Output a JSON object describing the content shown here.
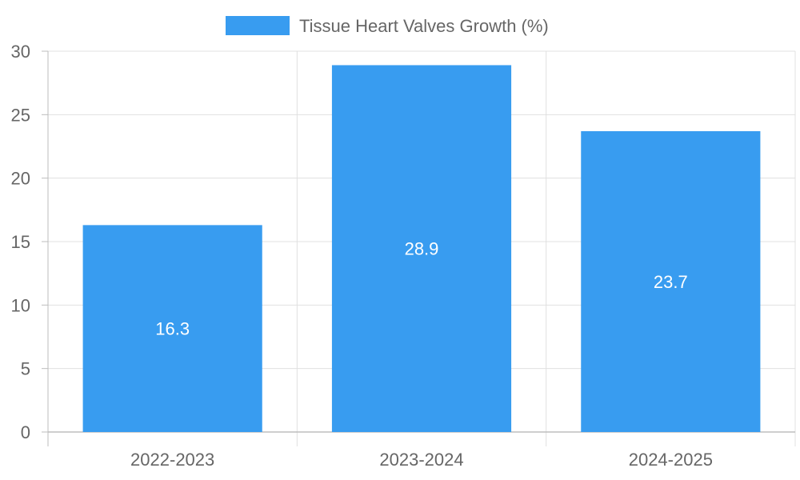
{
  "chart_data": {
    "type": "bar",
    "categories": [
      "2022-2023",
      "2023-2024",
      "2024-2025"
    ],
    "series": [
      {
        "name": "Tissue Heart Valves Growth (%)",
        "values": [
          16.3,
          28.9,
          23.7
        ],
        "color": "#389cf0"
      }
    ],
    "ylim": [
      0,
      30
    ],
    "yticks": [
      0,
      5,
      10,
      15,
      20,
      25,
      30
    ],
    "data_labels": [
      "16.3",
      "28.9",
      "23.7"
    ],
    "legend_position": "top-center",
    "grid": true,
    "title": "",
    "xlabel": "",
    "ylabel": ""
  }
}
